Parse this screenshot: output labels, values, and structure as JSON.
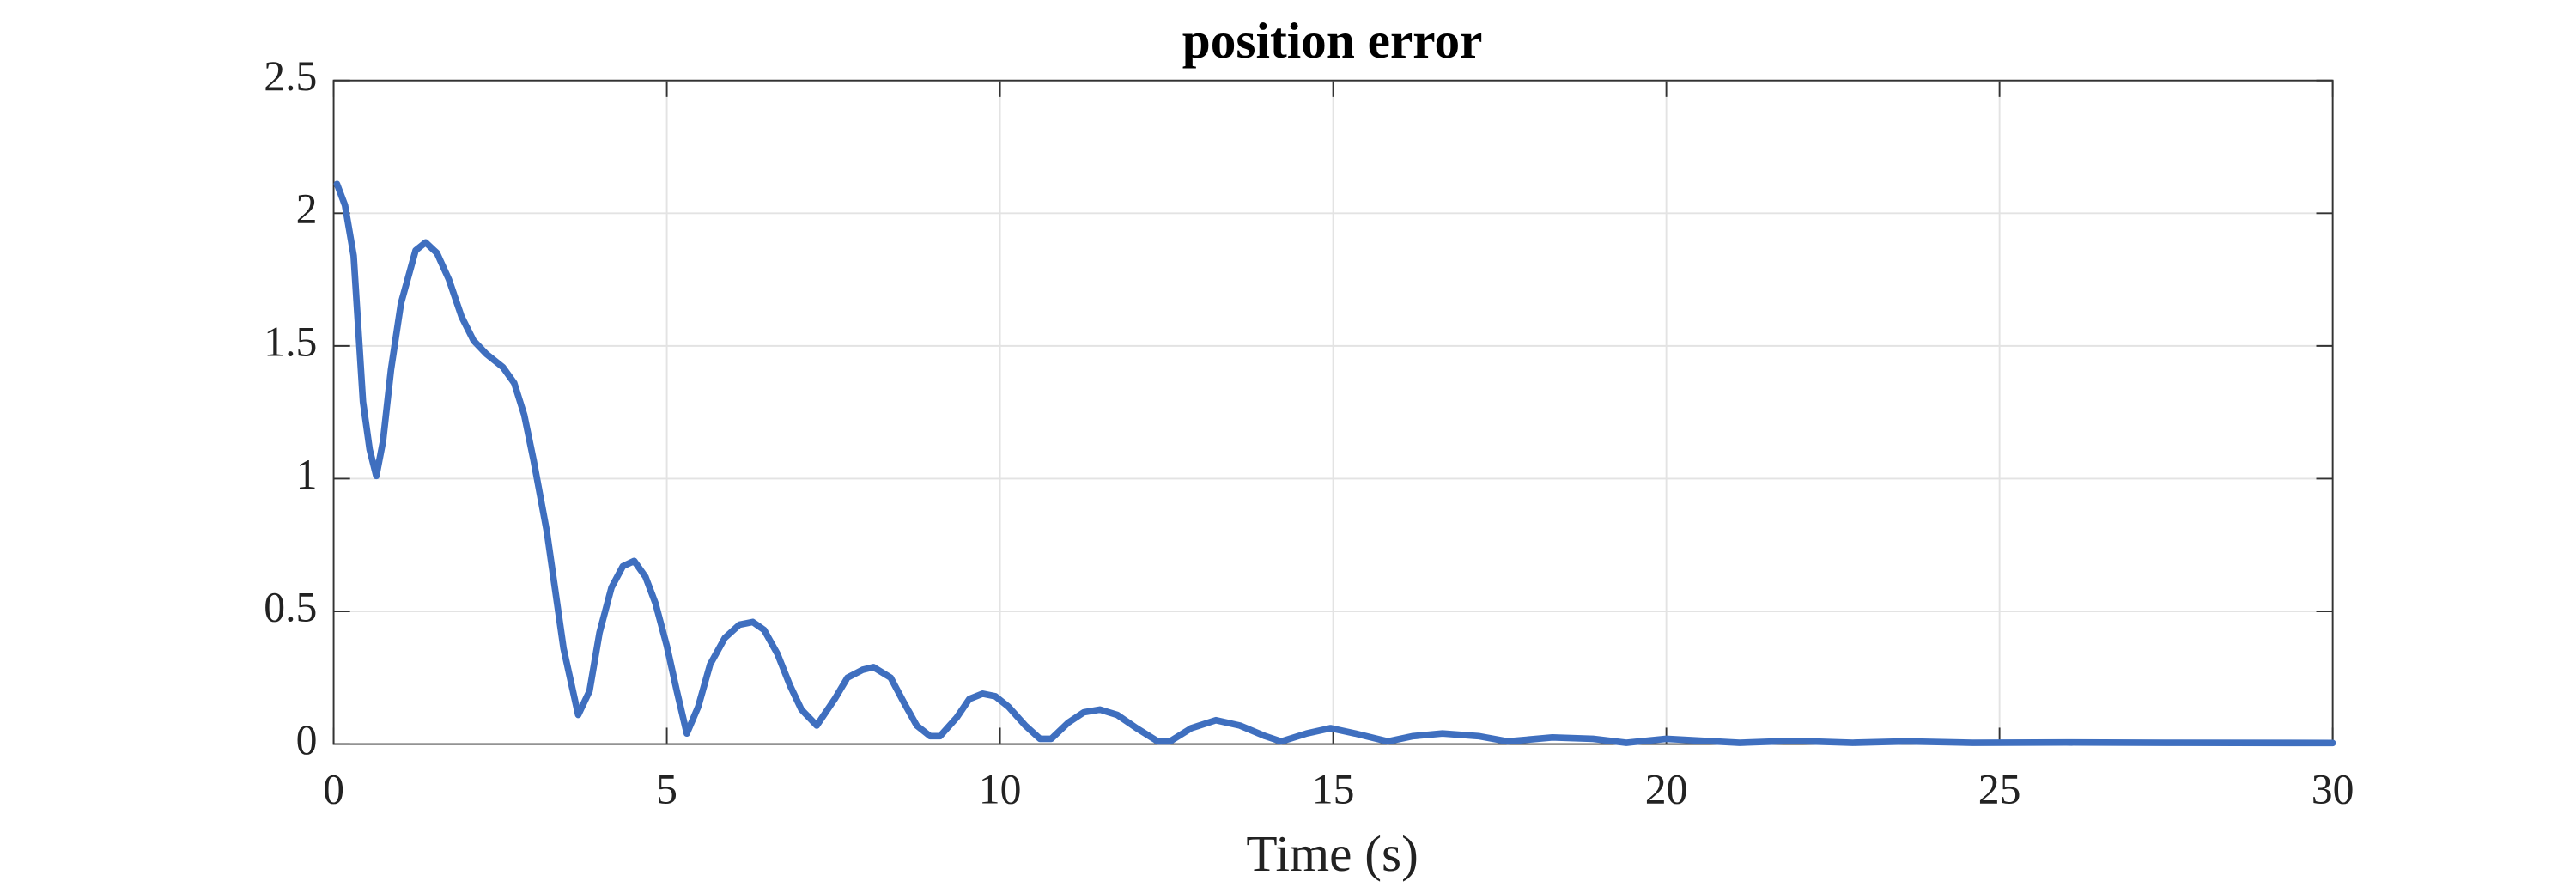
{
  "chart_data": {
    "type": "line",
    "title": "position error",
    "x_label": "Time (s)",
    "x": [
      0.05,
      0.17,
      0.3,
      0.44,
      0.54,
      0.64,
      0.74,
      0.86,
      1.01,
      1.23,
      1.38,
      1.55,
      1.73,
      1.92,
      2.1,
      2.29,
      2.54,
      2.71,
      2.86,
      3.0,
      3.2,
      3.45,
      3.67,
      3.84,
      3.99,
      4.17,
      4.34,
      4.51,
      4.68,
      4.83,
      5.0,
      5.15,
      5.3,
      5.47,
      5.65,
      5.87,
      6.09,
      6.29,
      6.46,
      6.66,
      6.85,
      7.02,
      7.25,
      7.52,
      7.71,
      7.94,
      8.1,
      8.36,
      8.55,
      8.75,
      8.95,
      9.1,
      9.35,
      9.54,
      9.74,
      9.93,
      10.13,
      10.38,
      10.6,
      10.77,
      11.02,
      11.26,
      11.5,
      11.76,
      12.05,
      12.37,
      12.55,
      12.87,
      13.24,
      13.6,
      13.98,
      14.22,
      14.6,
      14.96,
      15.33,
      15.82,
      16.2,
      16.64,
      17.18,
      17.62,
      18.29,
      18.9,
      19.4,
      20.0,
      21.1,
      21.9,
      22.8,
      23.6,
      24.6,
      26,
      27.5,
      30
    ],
    "values": [
      2.11,
      2.03,
      1.84,
      1.29,
      1.11,
      1.01,
      1.14,
      1.41,
      1.66,
      1.86,
      1.89,
      1.85,
      1.75,
      1.61,
      1.52,
      1.47,
      1.42,
      1.36,
      1.24,
      1.07,
      0.8,
      0.36,
      0.11,
      0.2,
      0.42,
      0.59,
      0.67,
      0.69,
      0.63,
      0.53,
      0.37,
      0.2,
      0.04,
      0.14,
      0.3,
      0.4,
      0.45,
      0.46,
      0.43,
      0.34,
      0.22,
      0.13,
      0.07,
      0.17,
      0.25,
      0.28,
      0.29,
      0.25,
      0.16,
      0.07,
      0.03,
      0.03,
      0.1,
      0.17,
      0.19,
      0.18,
      0.14,
      0.07,
      0.02,
      0.02,
      0.08,
      0.12,
      0.13,
      0.11,
      0.06,
      0.01,
      0.01,
      0.06,
      0.09,
      0.07,
      0.03,
      0.01,
      0.04,
      0.06,
      0.04,
      0.01,
      0.03,
      0.04,
      0.03,
      0.01,
      0.025,
      0.02,
      0.005,
      0.02,
      0.005,
      0.012,
      0.005,
      0.01,
      0.005,
      0.006,
      0.005,
      0.004
    ],
    "color": "#3f6fbf",
    "xlim": [
      0,
      30
    ],
    "xticks": [
      0,
      5,
      10,
      15,
      20,
      25,
      30
    ],
    "ylim": [
      0,
      2.5
    ],
    "yticks": [
      0,
      0.5,
      1,
      1.5,
      2,
      2.5
    ],
    "grid": true
  }
}
